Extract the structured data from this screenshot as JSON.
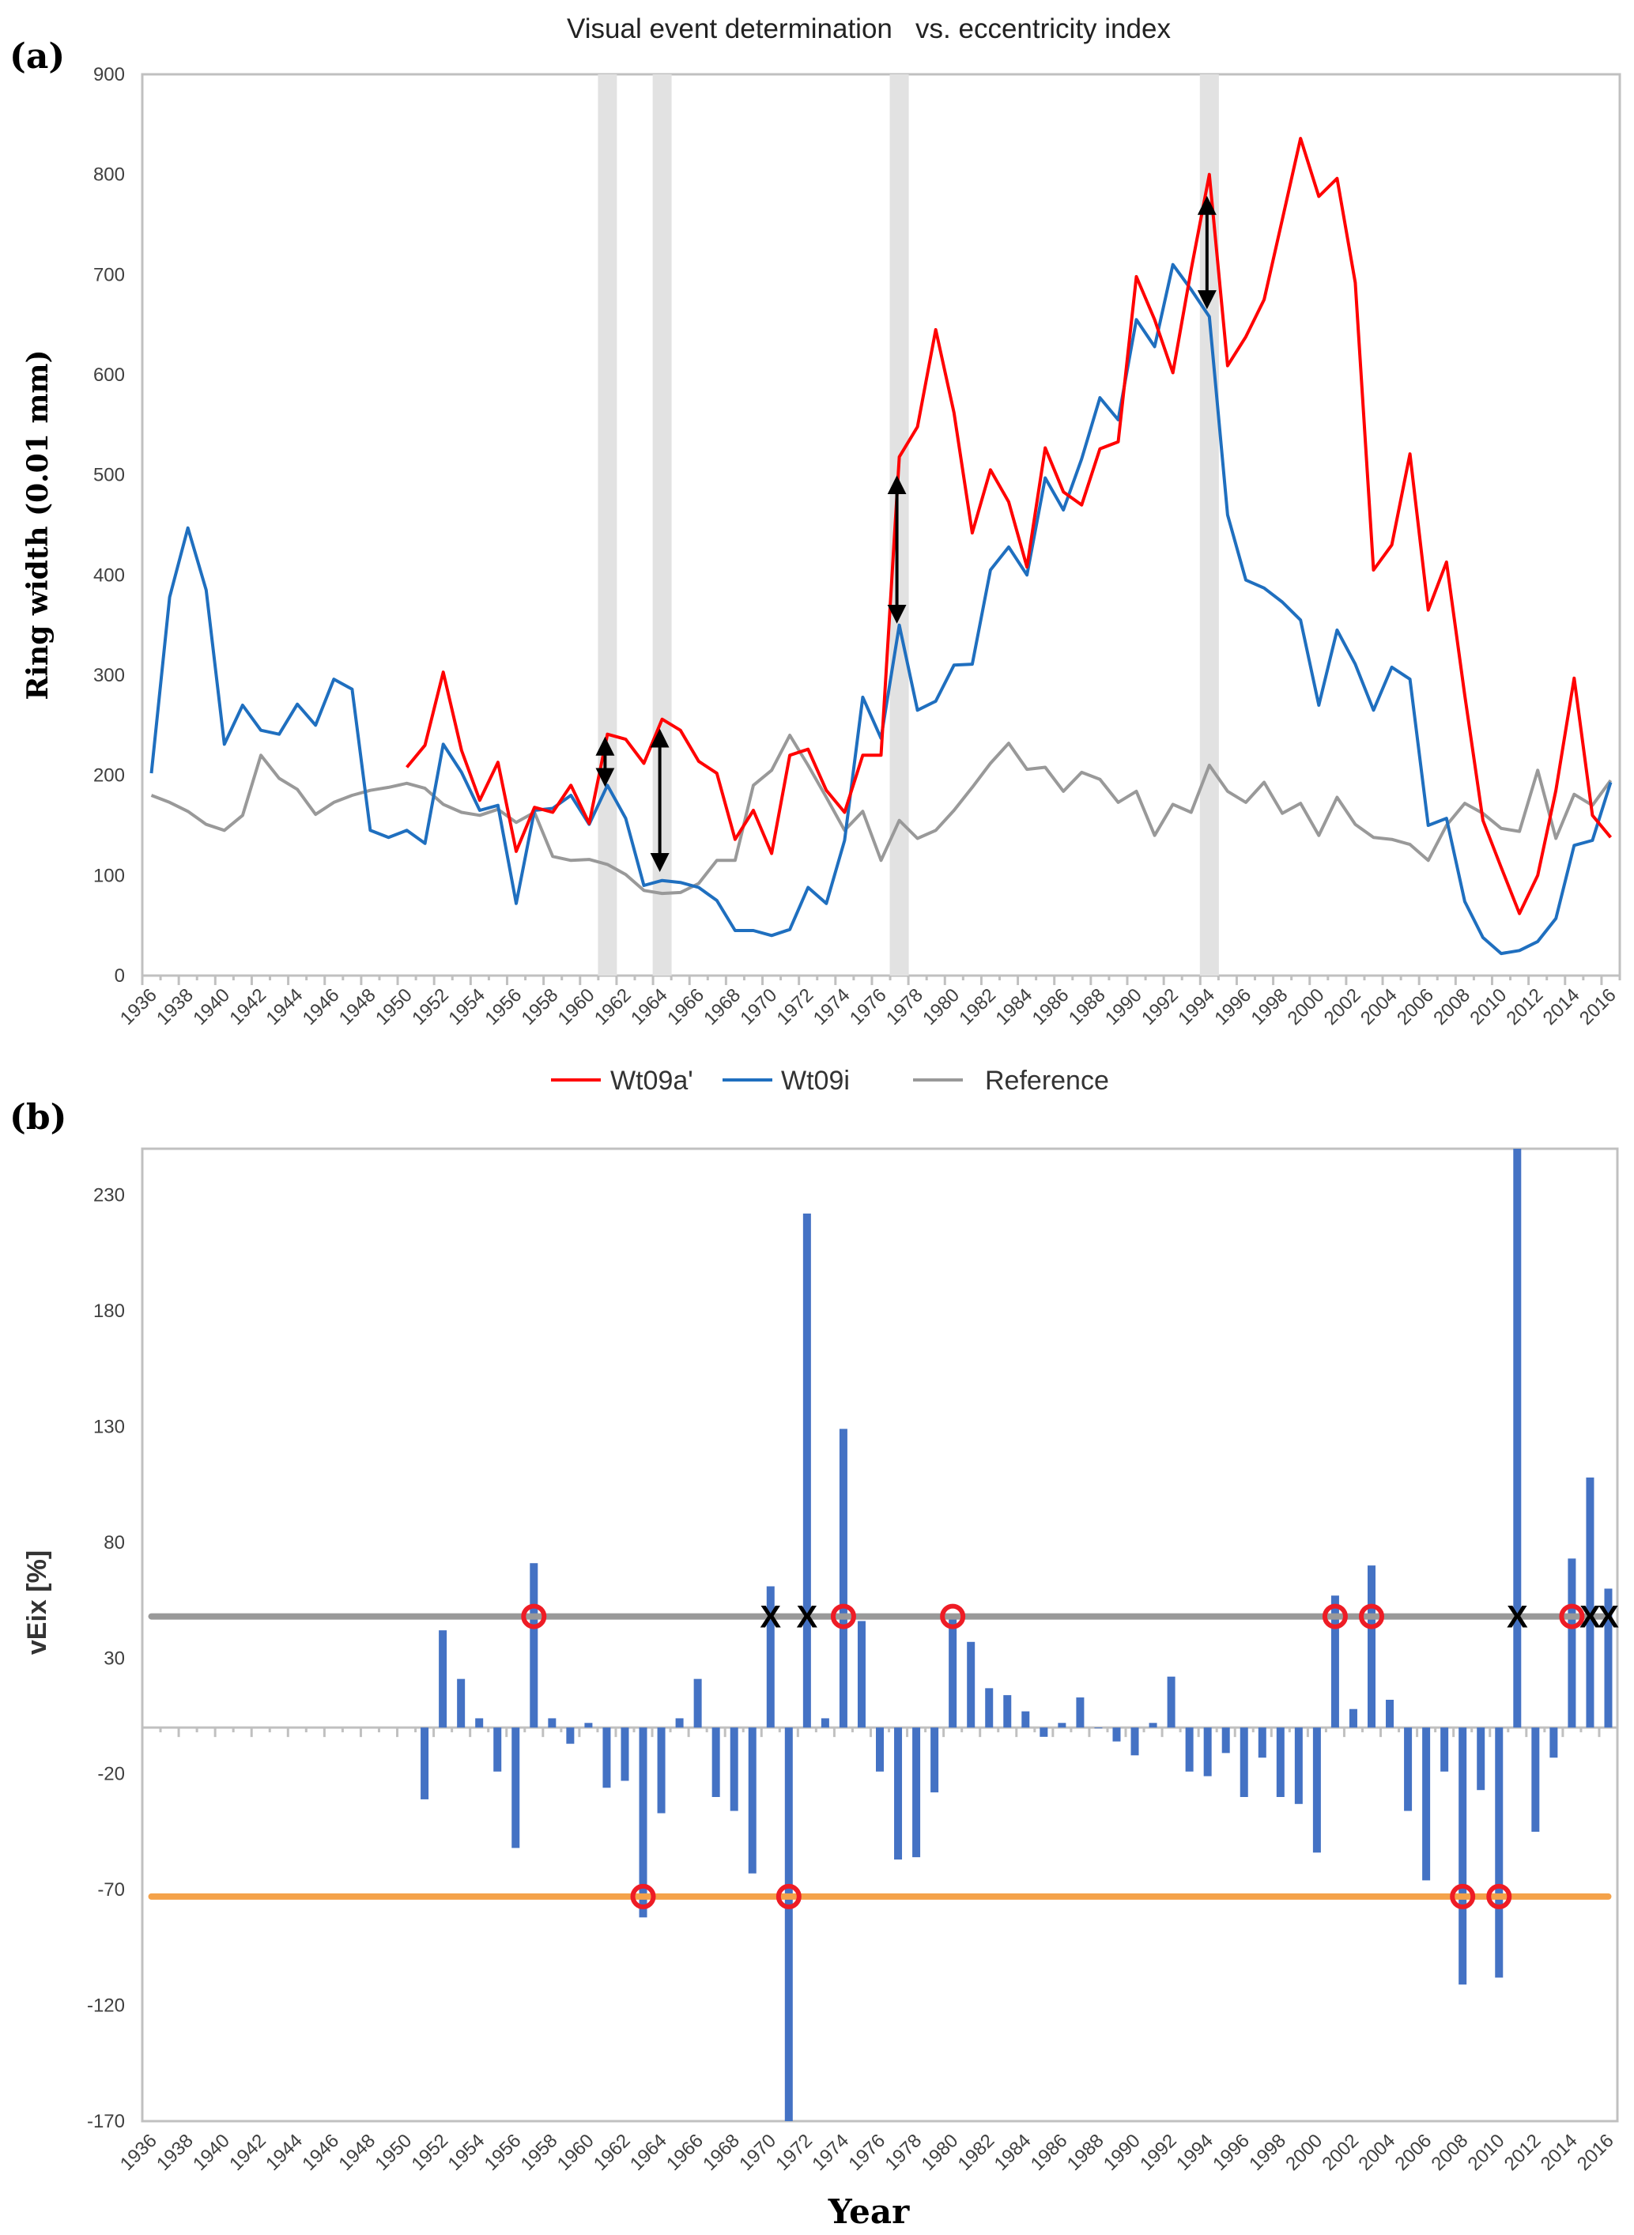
{
  "chart_data": [
    {
      "type": "line",
      "panel_label": "(a)",
      "title": "Visual event determination   vs. eccentricity index",
      "xlabel": "",
      "ylabel": "Ring width (0.01 mm)",
      "ylim": [
        0,
        900
      ],
      "yticks": [
        0,
        100,
        200,
        300,
        400,
        500,
        600,
        700,
        800,
        900
      ],
      "x_start": 1936,
      "x_end": 2016,
      "xtick_step": 2,
      "grid": false,
      "legend_position": "bottom-center",
      "series": [
        {
          "name": "Wt09a'",
          "color": "#FF0000",
          "start": 1950,
          "values": [
            208,
            230,
            303,
            225,
            175,
            213,
            124,
            168,
            163,
            190,
            152,
            241,
            236,
            212,
            256,
            245,
            214,
            202,
            136,
            165,
            122,
            220,
            226,
            185,
            163,
            220,
            220,
            518,
            548,
            645,
            562,
            442,
            505,
            473,
            408,
            527,
            483,
            470,
            526,
            533,
            698,
            655,
            602,
            705,
            800,
            609,
            638,
            675,
            755,
            836,
            778,
            796,
            692,
            405,
            430,
            521,
            365,
            413,
            280,
            155,
            108,
            62,
            100,
            185,
            297,
            160,
            138
          ]
        },
        {
          "name": "Wt09i",
          "color": "#1F6FBF",
          "start": 1936,
          "values": [
            202,
            378,
            447,
            385,
            231,
            270,
            245,
            241,
            271,
            250,
            296,
            286,
            145,
            138,
            145,
            132,
            231,
            203,
            165,
            170,
            72,
            165,
            167,
            180,
            151,
            190,
            157,
            90,
            95,
            93,
            88,
            75,
            45,
            45,
            40,
            46,
            88,
            72,
            135,
            278,
            237,
            350,
            265,
            274,
            310,
            311,
            405,
            428,
            400,
            497,
            465,
            516,
            577,
            555,
            655,
            628,
            710,
            685,
            658,
            460,
            395,
            387,
            373,
            355,
            270,
            345,
            311,
            265,
            308,
            296,
            150,
            157,
            74,
            38,
            22,
            25,
            34,
            57,
            130,
            135,
            193
          ]
        },
        {
          "name": "Reference",
          "color": "#999999",
          "start": 1936,
          "values": [
            180,
            173,
            164,
            151,
            145,
            160,
            220,
            197,
            186,
            161,
            173,
            180,
            185,
            188,
            192,
            187,
            171,
            163,
            160,
            166,
            153,
            163,
            119,
            115,
            116,
            111,
            101,
            85,
            82,
            83,
            92,
            115,
            115,
            190,
            205,
            240,
            210,
            178,
            145,
            164,
            115,
            155,
            137,
            145,
            165,
            188,
            212,
            232,
            206,
            208,
            184,
            203,
            196,
            173,
            184,
            140,
            171,
            163,
            210,
            184,
            173,
            193,
            162,
            172,
            140,
            178,
            151,
            138,
            136,
            131,
            115,
            150,
            172,
            162,
            147,
            144,
            205,
            137,
            181,
            170,
            195
          ]
        }
      ],
      "highlight_years": [
        1961,
        1964,
        1977,
        1994
      ],
      "arrows": [
        {
          "year": 1961,
          "from": 190,
          "to": 237
        },
        {
          "year": 1964,
          "from": 105,
          "to": 245
        },
        {
          "year": 1977,
          "from": 353,
          "to": 498
        },
        {
          "year": 1994,
          "from": 667,
          "to": 777
        }
      ]
    },
    {
      "type": "bar",
      "panel_label": "(b)",
      "xlabel": "Year",
      "ylabel": "vEix [%]",
      "ylim": [
        -170,
        250
      ],
      "yticks": [
        -170,
        -120,
        -70,
        -20,
        30,
        80,
        130,
        180,
        230
      ],
      "x_start": 1936,
      "x_end": 2016,
      "xtick_step": 2,
      "bar_color": "#4472C4",
      "values": [
        null,
        null,
        null,
        null,
        null,
        null,
        null,
        null,
        null,
        null,
        null,
        null,
        null,
        null,
        null,
        -31,
        42,
        21,
        4,
        -19,
        -52,
        71,
        4,
        -7,
        2,
        -26,
        -23,
        -82,
        -37,
        4,
        21,
        -30,
        -36,
        -63,
        61,
        -175,
        222,
        4,
        129,
        46,
        -19,
        -57,
        -56,
        -28,
        47,
        37,
        17,
        14,
        7,
        -4,
        2,
        13,
        0,
        -6,
        -12,
        2,
        22,
        -19,
        -21,
        -11,
        -30,
        -13,
        -30,
        -33,
        -54,
        57,
        8,
        70,
        12,
        -36,
        -66,
        -19,
        -111,
        -27,
        -108,
        260,
        -45,
        -13,
        73,
        108,
        60
      ],
      "thresholds": [
        {
          "name": "upper",
          "value": 48,
          "color": "#999999"
        },
        {
          "name": "lower",
          "value": -73,
          "color": "#F4A24A"
        }
      ],
      "event_circles": [
        {
          "year": 1957,
          "level": 48
        },
        {
          "year": 1974,
          "level": 48
        },
        {
          "year": 1980,
          "level": 48
        },
        {
          "year": 2001,
          "level": 48
        },
        {
          "year": 2003,
          "level": 48
        },
        {
          "year": 2014,
          "level": 48
        },
        {
          "year": 1963,
          "level": -73
        },
        {
          "year": 1971,
          "level": -73
        },
        {
          "year": 2008,
          "level": -73
        },
        {
          "year": 2010,
          "level": -73
        }
      ],
      "x_marks": {
        "symbol": "X",
        "level": 48,
        "years": [
          1970,
          1972,
          2011,
          2015,
          2016
        ]
      }
    }
  ]
}
